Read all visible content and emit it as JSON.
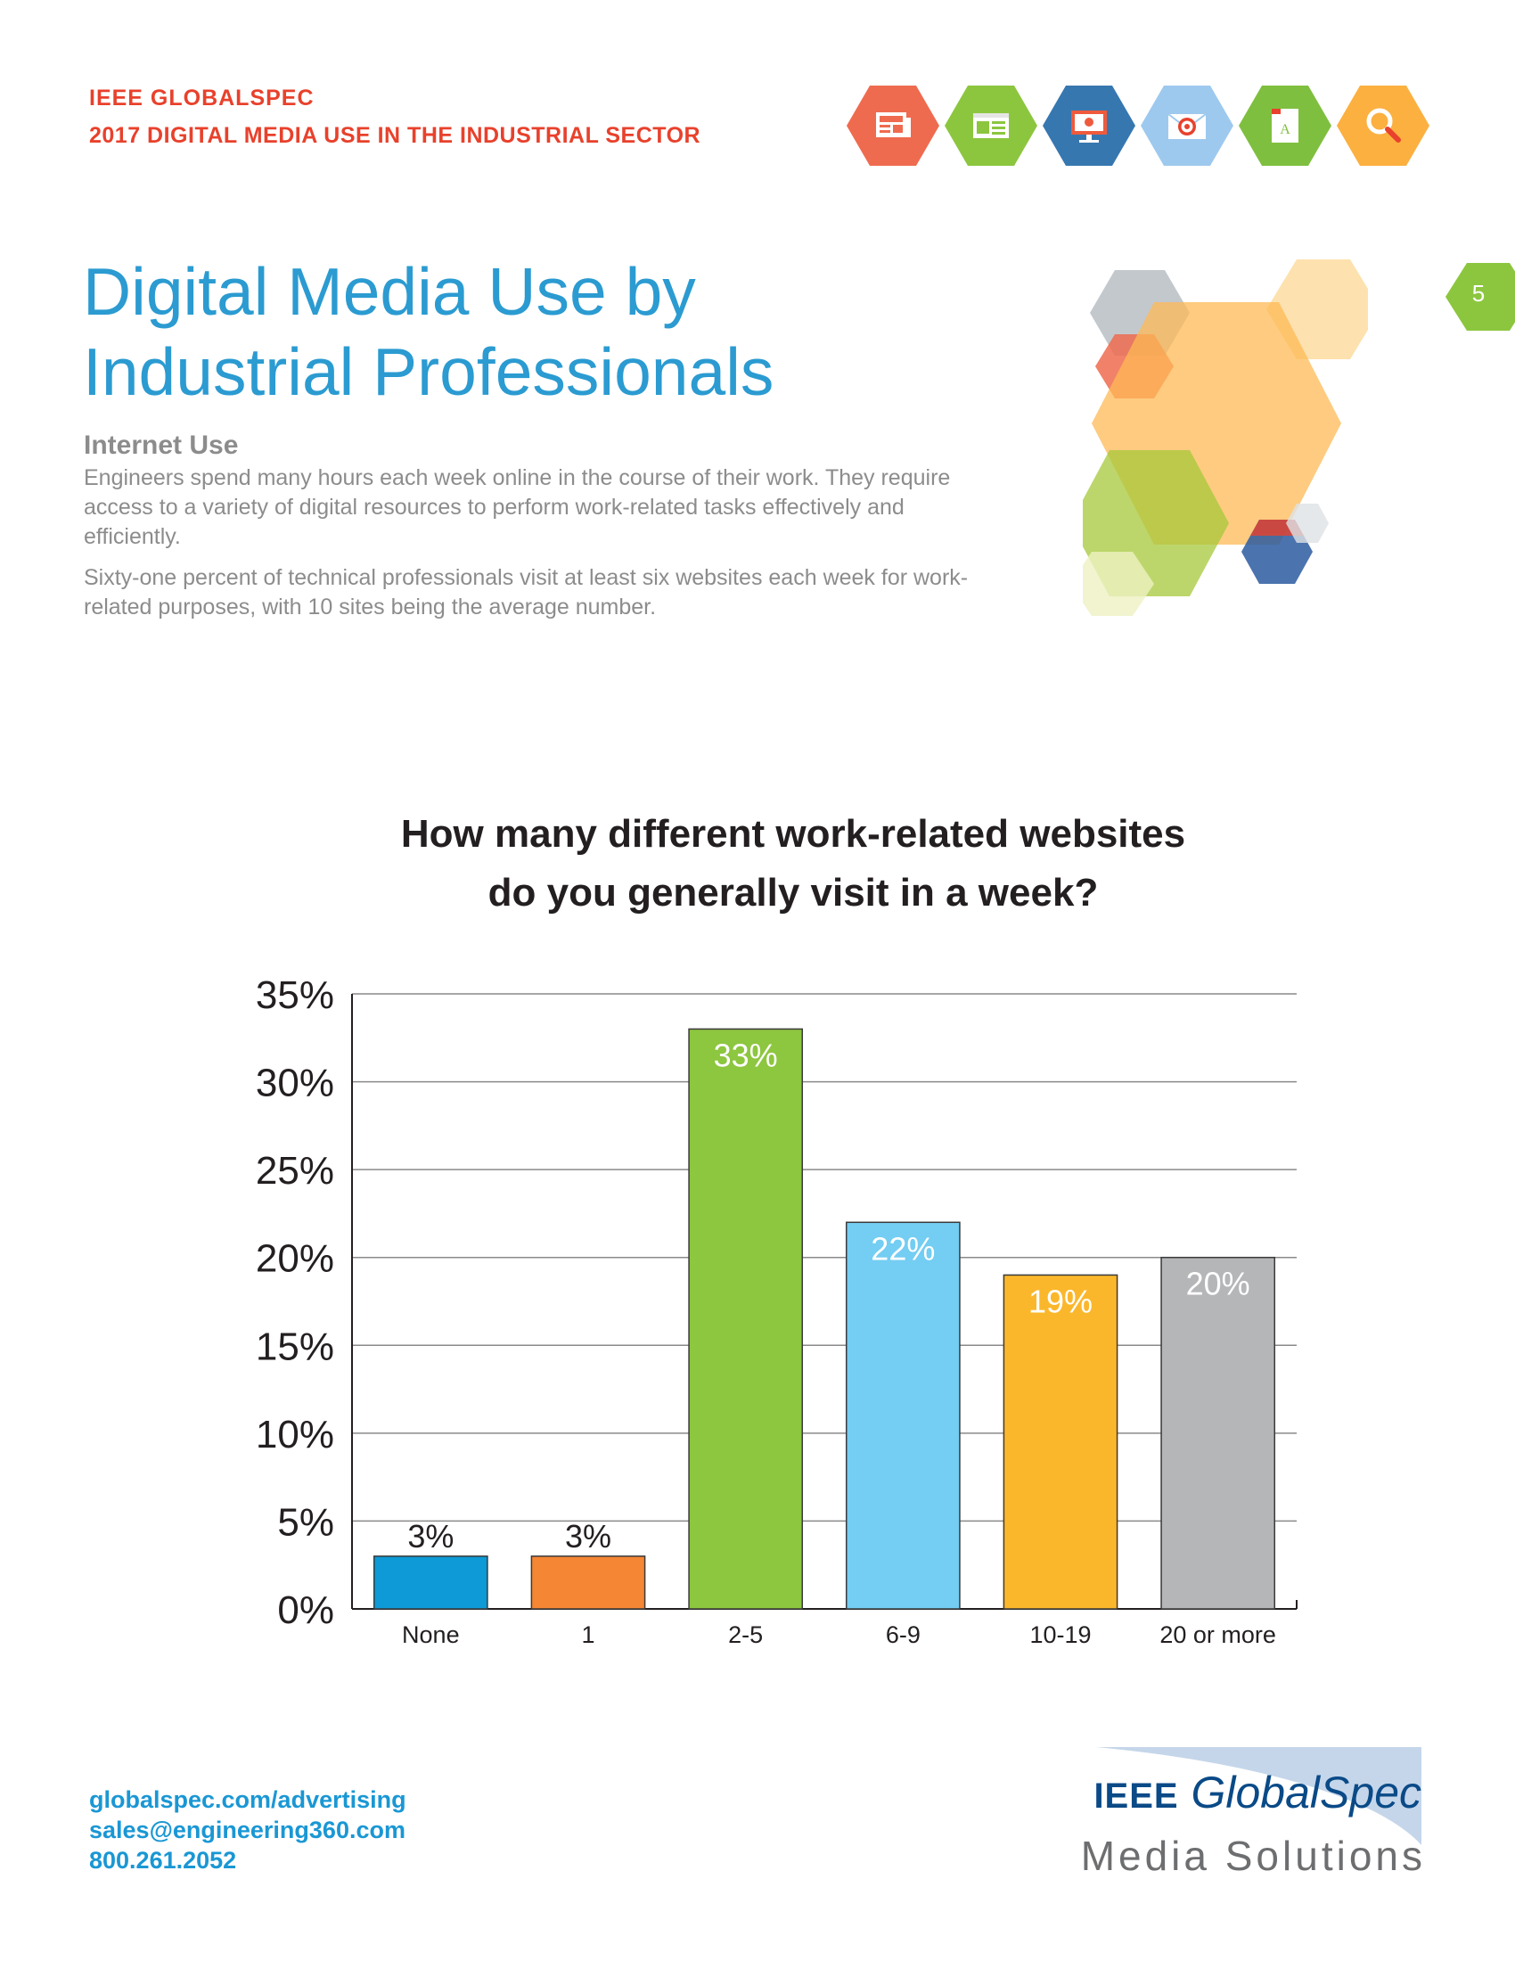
{
  "header": {
    "brand": "IEEE GLOBALSPEC",
    "report_title": "2017 DIGITAL MEDIA USE IN THE INDUSTRIAL SECTOR"
  },
  "header_icons": [
    {
      "name": "newspaper-icon",
      "color": "#ef6b4f"
    },
    {
      "name": "web-page-icon",
      "color": "#8cc63f"
    },
    {
      "name": "computer-monitor-icon",
      "color": "#3777b0"
    },
    {
      "name": "email-target-icon",
      "color": "#9ec9ee"
    },
    {
      "name": "ebook-icon",
      "color": "#7fbf3f"
    },
    {
      "name": "search-icon",
      "color": "#fbb040"
    }
  ],
  "page_number": "5",
  "title": {
    "line1": "Digital Media Use by",
    "line2": "Industrial Professionals"
  },
  "section": {
    "heading": "Internet Use",
    "paragraph1": "Engineers spend many hours each week online in the course of their work. They require access to a variety of digital resources to perform work-related tasks effectively and efficiently.",
    "paragraph2": "Sixty-one percent of technical professionals visit at least six websites each week for work-related purposes, with 10 sites being the average number."
  },
  "chart_data": {
    "type": "bar",
    "title_line1": "How many different work-related websites",
    "title_line2": "do you generally visit in a week?",
    "categories": [
      "None",
      "1",
      "2-5",
      "6-9",
      "10-19",
      "20 or more"
    ],
    "values": [
      3,
      3,
      33,
      22,
      19,
      20
    ],
    "value_labels": [
      "3%",
      "3%",
      "33%",
      "22%",
      "19%",
      "20%"
    ],
    "label_inside": [
      false,
      false,
      true,
      true,
      true,
      true
    ],
    "colors": [
      "#0d9ad7",
      "#f58634",
      "#8dc63f",
      "#74cdf2",
      "#fbb72b",
      "#b5b6b8"
    ],
    "ylim": [
      0,
      35
    ],
    "yticks": [
      0,
      5,
      10,
      15,
      20,
      25,
      30,
      35
    ],
    "ytick_labels": [
      "0%",
      "5%",
      "10%",
      "15%",
      "20%",
      "25%",
      "30%",
      "35%"
    ],
    "grid": true,
    "legend": false
  },
  "footer": {
    "website": "globalspec.com/advertising",
    "email": "sales@engineering360.com",
    "phone": "800.261.2052"
  },
  "logo": {
    "ieee": "IEEE",
    "globalspec": "GlobalSpec",
    "media_solutions": "Media Solutions"
  }
}
